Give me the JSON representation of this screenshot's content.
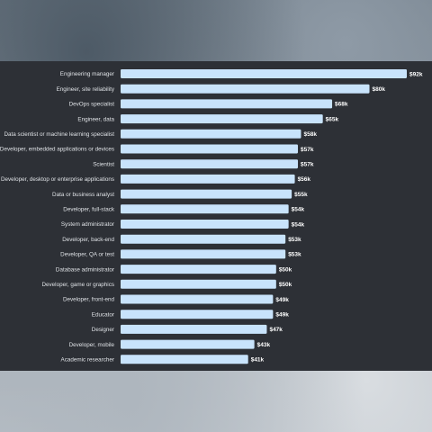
{
  "colors": {
    "panel_background": "#2d3036",
    "bar_fill": "#c8e3fb",
    "label_text": "#dfe2e6",
    "value_text": "#ffffff"
  },
  "chart_data": {
    "type": "bar",
    "orientation": "horizontal",
    "title": "",
    "xlabel": "",
    "ylabel": "",
    "xlim": [
      0,
      92
    ],
    "grid": false,
    "legend": "none",
    "categories": [
      "Engineering manager",
      "Engineer, site reliability",
      "DevOps specialist",
      "Engineer, data",
      "Data scientist or machine learning specialist",
      "Developer, embedded applications or devices",
      "Scientist",
      "Developer, desktop or enterprise applications",
      "Data or business analyst",
      "Developer, full-stack",
      "System administrator",
      "Developer, back-end",
      "Developer, QA or test",
      "Database administrator",
      "Developer, game or graphics",
      "Developer, front-end",
      "Educator",
      "Designer",
      "Developer, mobile",
      "Academic researcher"
    ],
    "values": [
      92,
      80,
      68,
      65,
      58,
      57,
      57,
      56,
      55,
      54,
      54,
      53,
      53,
      50,
      50,
      49,
      49,
      47,
      43,
      41
    ],
    "value_labels": [
      "$92k",
      "$80k",
      "$68k",
      "$65k",
      "$58k",
      "$57k",
      "$57k",
      "$56k",
      "$55k",
      "$54k",
      "$54k",
      "$53k",
      "$53k",
      "$50k",
      "$50k",
      "$49k",
      "$49k",
      "$47k",
      "$43k",
      "$41k"
    ]
  }
}
